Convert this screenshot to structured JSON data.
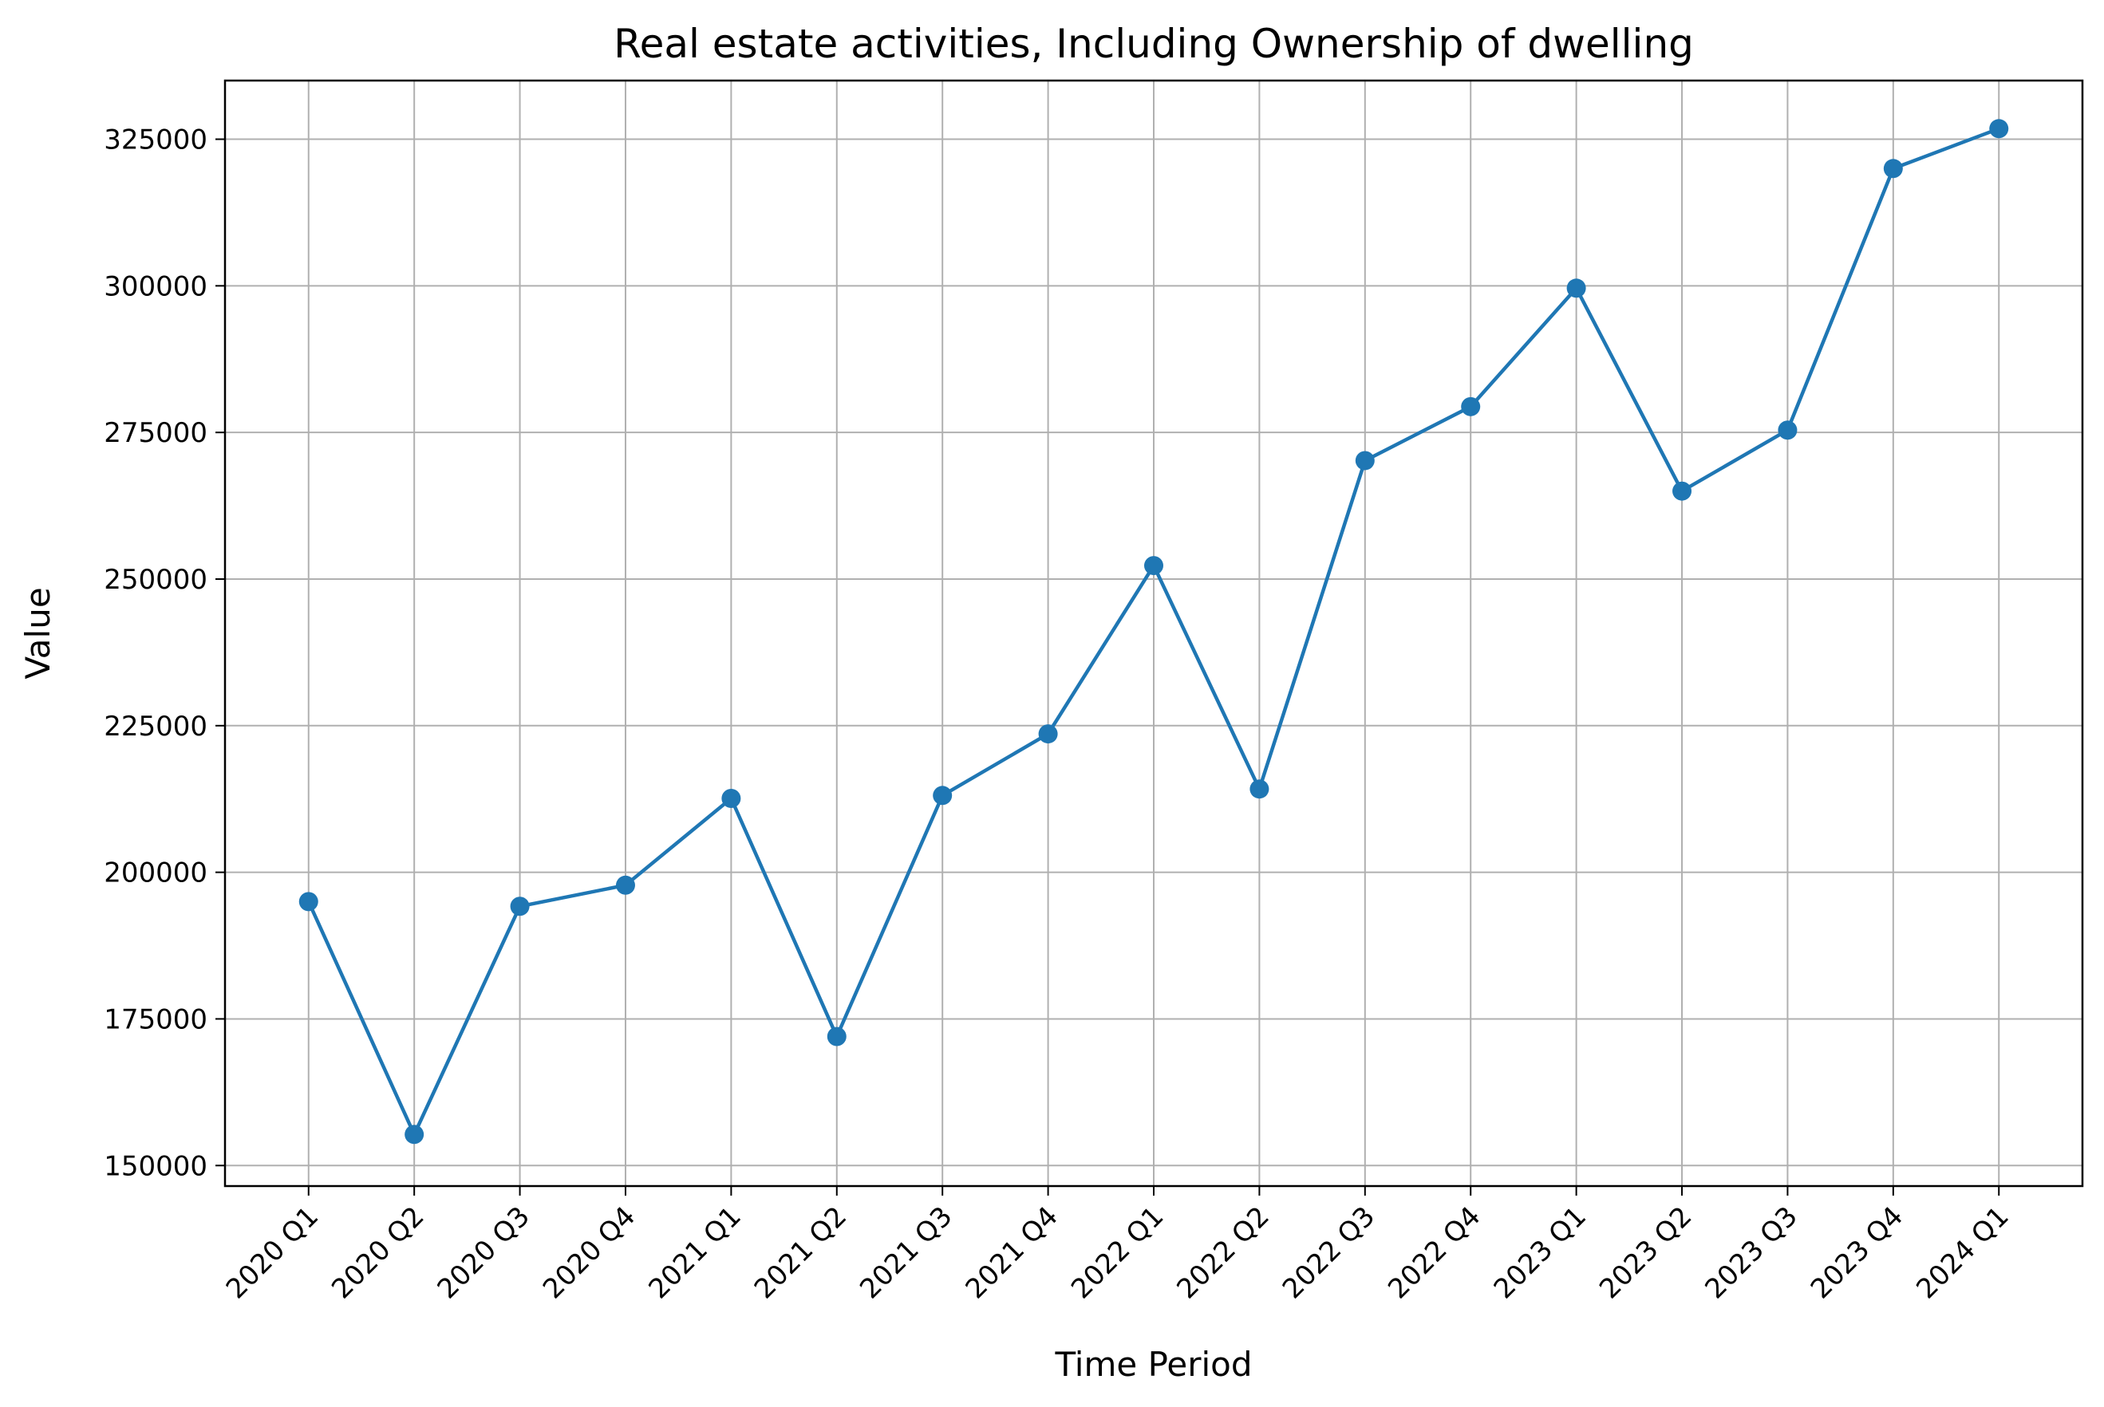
{
  "chart_data": {
    "type": "line",
    "title": "Real estate activities, Including Ownership of dwelling",
    "xlabel": "Time Period",
    "ylabel": "Value",
    "categories": [
      "2020 Q1",
      "2020 Q2",
      "2020 Q3",
      "2020 Q4",
      "2021 Q1",
      "2021 Q2",
      "2021 Q3",
      "2021 Q4",
      "2022 Q1",
      "2022 Q2",
      "2022 Q3",
      "2022 Q4",
      "2023 Q1",
      "2023 Q2",
      "2023 Q3",
      "2023 Q4",
      "2024 Q1"
    ],
    "series": [
      {
        "values": [
          195000,
          155300,
          194200,
          197800,
          212600,
          172000,
          213100,
          223600,
          252300,
          214200,
          270200,
          279400,
          299600,
          265000,
          275400,
          320000,
          326800
        ],
        "color": "#1f77b4",
        "marker": "circle"
      }
    ],
    "ylim": [
      146500,
      335000
    ],
    "yticks": [
      150000,
      175000,
      200000,
      225000,
      250000,
      275000,
      300000,
      325000
    ],
    "ytick_labels": [
      "150000",
      "175000",
      "200000",
      "225000",
      "250000",
      "275000",
      "300000",
      "325000"
    ],
    "grid": true,
    "x_tick_rotation_deg": 45,
    "colors": {
      "line": "#1f77b4",
      "grid": "#b0b0b0",
      "axes": "#000000"
    }
  }
}
